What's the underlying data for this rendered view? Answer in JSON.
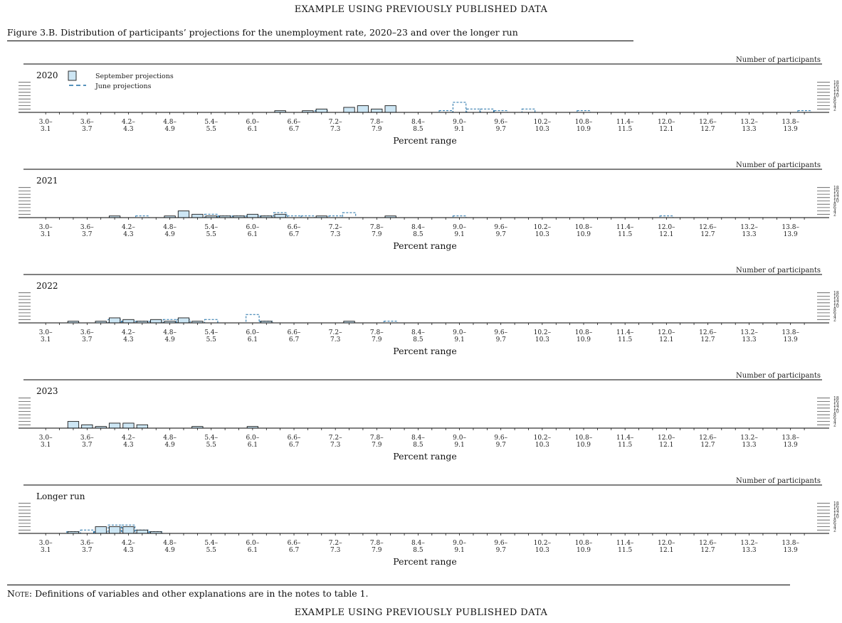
{
  "page": {
    "banner_top": "EXAMPLE USING PREVIOUSLY PUBLISHED DATA",
    "banner_bottom": "EXAMPLE USING PREVIOUSLY PUBLISHED DATA",
    "figure_title": "Figure 3.B. Distribution of participants’ projections for the unemployment rate, 2020–23 and over the longer run",
    "note_label": "Note:",
    "note_text": "Definitions of variables and other explanations are in the notes to table 1."
  },
  "chart_data": {
    "type": "bar",
    "ylabel": "Number of participants",
    "xlabel": "Percent range",
    "legend": [
      "September projections",
      "June projections"
    ],
    "y_ticks": [
      2,
      4,
      6,
      8,
      10,
      12,
      14,
      16,
      18
    ],
    "ylim": [
      0,
      18
    ],
    "colors": {
      "september_fill": "#cde6f4",
      "september_edge": "#1a1a1a",
      "june_edge": "#1f6fa6"
    },
    "categories": [
      "3.0–3.1",
      "3.2–3.3",
      "3.4–3.5",
      "3.6–3.7",
      "3.8–3.9",
      "4.0–4.1",
      "4.2–4.3",
      "4.4–4.5",
      "4.6–4.7",
      "4.8–4.9",
      "5.0–5.1",
      "5.2–5.3",
      "5.4–5.5",
      "5.6–5.7",
      "5.8–5.9",
      "6.0–6.1",
      "6.2–6.3",
      "6.4–6.5",
      "6.6–6.7",
      "6.8–6.9",
      "7.0–7.1",
      "7.2–7.3",
      "7.4–7.5",
      "7.6–7.7",
      "7.8–7.9",
      "8.0–8.1",
      "8.2–8.3",
      "8.4–8.5",
      "8.6–8.7",
      "8.8–8.9",
      "9.0–9.1",
      "9.2–9.3",
      "9.4–9.5",
      "9.6–9.7",
      "9.8–9.9",
      "10.0–10.1",
      "10.2–10.3",
      "10.4–10.5",
      "10.6–10.7",
      "10.8–10.9",
      "11.0–11.1",
      "11.2–11.3",
      "11.4–11.5",
      "11.6–11.7",
      "11.8–11.9",
      "12.0–12.1",
      "12.2–12.3",
      "12.4–12.5",
      "12.6–12.7",
      "12.8–12.9",
      "13.0–13.1",
      "13.2–13.3",
      "13.4–13.5",
      "13.6–13.7",
      "13.8–13.9",
      "14.0–14.1"
    ],
    "tick_labels": [
      {
        "top": "3.0–",
        "bottom": "3.1",
        "index": 0
      },
      {
        "top": "3.6–",
        "bottom": "3.7",
        "index": 3
      },
      {
        "top": "4.2–",
        "bottom": "4.3",
        "index": 6
      },
      {
        "top": "4.8–",
        "bottom": "4.9",
        "index": 9
      },
      {
        "top": "5.4–",
        "bottom": "5.5",
        "index": 12
      },
      {
        "top": "6.0–",
        "bottom": "6.1",
        "index": 15
      },
      {
        "top": "6.6–",
        "bottom": "6.7",
        "index": 18
      },
      {
        "top": "7.2–",
        "bottom": "7.3",
        "index": 21
      },
      {
        "top": "7.8–",
        "bottom": "7.9",
        "index": 24
      },
      {
        "top": "8.4–",
        "bottom": "8.5",
        "index": 27
      },
      {
        "top": "9.0–",
        "bottom": "9.1",
        "index": 30
      },
      {
        "top": "9.6–",
        "bottom": "9.7",
        "index": 33
      },
      {
        "top": "10.2–",
        "bottom": "10.3",
        "index": 36
      },
      {
        "top": "10.8–",
        "bottom": "10.9",
        "index": 39
      },
      {
        "top": "11.4–",
        "bottom": "11.5",
        "index": 42
      },
      {
        "top": "12.0–",
        "bottom": "12.1",
        "index": 45
      },
      {
        "top": "12.6–",
        "bottom": "12.7",
        "index": 48
      },
      {
        "top": "13.2–",
        "bottom": "13.3",
        "index": 51
      },
      {
        "top": "13.8–",
        "bottom": "13.9",
        "index": 54
      }
    ],
    "panels": [
      {
        "label": "2020",
        "show_legend": true,
        "series": [
          {
            "name": "September projections",
            "values": {
              "17": 1,
              "19": 1,
              "20": 2,
              "22": 3,
              "23": 4,
              "24": 2,
              "25": 4
            }
          },
          {
            "name": "June projections",
            "values": {
              "20": 1,
              "29": 1,
              "30": 6,
              "31": 2,
              "32": 2,
              "33": 1,
              "35": 2,
              "39": 1,
              "55": 1
            }
          }
        ]
      },
      {
        "label": "2021",
        "show_legend": false,
        "series": [
          {
            "name": "September projections",
            "values": {
              "5": 1,
              "9": 1,
              "10": 4,
              "11": 2,
              "12": 1,
              "13": 1,
              "14": 1,
              "15": 2,
              "16": 1,
              "17": 2,
              "20": 1,
              "25": 1
            }
          },
          {
            "name": "June projections",
            "values": {
              "7": 1,
              "12": 2,
              "13": 1,
              "14": 1,
              "15": 1,
              "16": 1,
              "17": 3,
              "18": 1,
              "19": 1,
              "21": 1,
              "22": 3,
              "30": 1,
              "45": 1
            }
          }
        ]
      },
      {
        "label": "2022",
        "show_legend": false,
        "series": [
          {
            "name": "September projections",
            "values": {
              "2": 1,
              "4": 1,
              "5": 3,
              "6": 2,
              "7": 1,
              "8": 2,
              "9": 1,
              "10": 3,
              "11": 1,
              "16": 1,
              "22": 1
            }
          },
          {
            "name": "June projections",
            "values": {
              "5": 2,
              "6": 1,
              "7": 1,
              "8": 1,
              "9": 2,
              "10": 2,
              "12": 2,
              "15": 5,
              "16": 1,
              "25": 1
            }
          }
        ]
      },
      {
        "label": "2023",
        "show_legend": false,
        "series": [
          {
            "name": "September projections",
            "values": {
              "2": 4,
              "3": 2,
              "4": 1,
              "5": 3,
              "6": 3,
              "7": 2,
              "11": 1,
              "15": 1
            }
          },
          {
            "name": "June projections",
            "values": {}
          }
        ]
      },
      {
        "label": "Longer run",
        "show_legend": false,
        "series": [
          {
            "name": "September projections",
            "values": {
              "2": 1,
              "4": 4,
              "5": 4,
              "6": 4,
              "7": 2,
              "8": 1
            }
          },
          {
            "name": "June projections",
            "values": {
              "2": 1,
              "3": 2,
              "4": 1,
              "5": 5,
              "6": 5,
              "7": 2,
              "8": 1
            }
          }
        ]
      }
    ]
  }
}
